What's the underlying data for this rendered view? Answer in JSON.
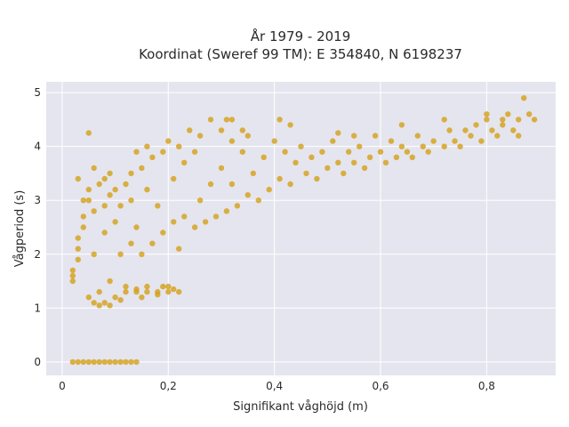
{
  "chart_data": {
    "type": "scatter",
    "title_lines": [
      "År 1979 - 2019",
      "Koordinat (Sweref 99 TM): E 354840, N 6198237"
    ],
    "xlabel": "Signifikant våghöjd (m)",
    "ylabel": "Vågperiod (s)",
    "xlim": [
      -0.03,
      0.93
    ],
    "ylim": [
      -0.25,
      5.2
    ],
    "xticks": [
      0,
      0.2,
      0.4,
      0.6,
      0.8
    ],
    "xtick_labels": [
      "0",
      "0,2",
      "0,4",
      "0,6",
      "0,8"
    ],
    "yticks": [
      0,
      1,
      2,
      3,
      4,
      5
    ],
    "ytick_labels": [
      "0",
      "1",
      "2",
      "3",
      "4",
      "5"
    ],
    "grid": true,
    "colors": {
      "marker": "#D4A017",
      "plot_bg": "#E5E5EF",
      "grid": "#ffffff"
    },
    "points": [
      [
        0.02,
        1.5
      ],
      [
        0.02,
        1.6
      ],
      [
        0.02,
        1.7
      ],
      [
        0.03,
        1.9
      ],
      [
        0.03,
        2.1
      ],
      [
        0.03,
        2.3
      ],
      [
        0.04,
        2.5
      ],
      [
        0.04,
        2.7
      ],
      [
        0.05,
        3.0
      ],
      [
        0.05,
        3.2
      ],
      [
        0.05,
        1.2
      ],
      [
        0.06,
        1.1
      ],
      [
        0.06,
        2.0
      ],
      [
        0.06,
        2.8
      ],
      [
        0.07,
        3.3
      ],
      [
        0.07,
        1.3
      ],
      [
        0.08,
        1.1
      ],
      [
        0.08,
        2.4
      ],
      [
        0.08,
        2.9
      ],
      [
        0.09,
        3.1
      ],
      [
        0.09,
        1.5
      ],
      [
        0.1,
        2.6
      ],
      [
        0.1,
        3.2
      ],
      [
        0.1,
        1.2
      ],
      [
        0.11,
        2.0
      ],
      [
        0.11,
        2.9
      ],
      [
        0.12,
        3.3
      ],
      [
        0.12,
        1.4
      ],
      [
        0.13,
        2.2
      ],
      [
        0.13,
        3.0
      ],
      [
        0.13,
        3.5
      ],
      [
        0.14,
        1.3
      ],
      [
        0.14,
        2.5
      ],
      [
        0.15,
        3.6
      ],
      [
        0.15,
        2.0
      ],
      [
        0.16,
        1.4
      ],
      [
        0.16,
        3.2
      ],
      [
        0.17,
        3.8
      ],
      [
        0.17,
        2.2
      ],
      [
        0.18,
        1.3
      ],
      [
        0.18,
        2.9
      ],
      [
        0.19,
        3.9
      ],
      [
        0.19,
        2.4
      ],
      [
        0.2,
        4.1
      ],
      [
        0.2,
        1.4
      ],
      [
        0.21,
        2.6
      ],
      [
        0.21,
        3.4
      ],
      [
        0.22,
        4.0
      ],
      [
        0.22,
        2.1
      ],
      [
        0.23,
        3.7
      ],
      [
        0.23,
        2.7
      ],
      [
        0.24,
        4.3
      ],
      [
        0.25,
        2.5
      ],
      [
        0.25,
        3.9
      ],
      [
        0.26,
        4.2
      ],
      [
        0.26,
        3.0
      ],
      [
        0.27,
        2.6
      ],
      [
        0.28,
        4.5
      ],
      [
        0.28,
        3.3
      ],
      [
        0.29,
        2.7
      ],
      [
        0.3,
        4.3
      ],
      [
        0.3,
        3.6
      ],
      [
        0.31,
        2.8
      ],
      [
        0.32,
        4.1
      ],
      [
        0.32,
        3.3
      ],
      [
        0.33,
        2.9
      ],
      [
        0.34,
        3.9
      ],
      [
        0.35,
        3.1
      ],
      [
        0.35,
        4.2
      ],
      [
        0.36,
        3.5
      ],
      [
        0.37,
        3.0
      ],
      [
        0.38,
        3.8
      ],
      [
        0.39,
        3.2
      ],
      [
        0.4,
        4.1
      ],
      [
        0.41,
        3.4
      ],
      [
        0.42,
        3.9
      ],
      [
        0.43,
        3.3
      ],
      [
        0.44,
        3.7
      ],
      [
        0.45,
        4.0
      ],
      [
        0.46,
        3.5
      ],
      [
        0.47,
        3.8
      ],
      [
        0.48,
        3.4
      ],
      [
        0.49,
        3.9
      ],
      [
        0.5,
        3.6
      ],
      [
        0.51,
        4.1
      ],
      [
        0.52,
        3.7
      ],
      [
        0.53,
        3.5
      ],
      [
        0.54,
        3.9
      ],
      [
        0.55,
        3.7
      ],
      [
        0.56,
        4.0
      ],
      [
        0.57,
        3.6
      ],
      [
        0.58,
        3.8
      ],
      [
        0.6,
        3.9
      ],
      [
        0.61,
        3.7
      ],
      [
        0.62,
        4.1
      ],
      [
        0.63,
        3.8
      ],
      [
        0.64,
        4.0
      ],
      [
        0.65,
        3.9
      ],
      [
        0.66,
        3.8
      ],
      [
        0.67,
        4.2
      ],
      [
        0.68,
        4.0
      ],
      [
        0.69,
        3.9
      ],
      [
        0.7,
        4.1
      ],
      [
        0.72,
        4.0
      ],
      [
        0.73,
        4.3
      ],
      [
        0.74,
        4.1
      ],
      [
        0.75,
        4.0
      ],
      [
        0.76,
        4.3
      ],
      [
        0.77,
        4.2
      ],
      [
        0.78,
        4.4
      ],
      [
        0.79,
        4.1
      ],
      [
        0.8,
        4.5
      ],
      [
        0.81,
        4.3
      ],
      [
        0.82,
        4.2
      ],
      [
        0.83,
        4.4
      ],
      [
        0.84,
        4.6
      ],
      [
        0.85,
        4.3
      ],
      [
        0.86,
        4.5
      ],
      [
        0.87,
        4.9
      ],
      [
        0.88,
        4.6
      ],
      [
        0.89,
        4.5
      ],
      [
        0.03,
        3.4
      ],
      [
        0.04,
        3.0
      ],
      [
        0.05,
        4.25
      ],
      [
        0.06,
        3.6
      ],
      [
        0.08,
        3.4
      ],
      [
        0.09,
        3.5
      ],
      [
        0.14,
        3.9
      ],
      [
        0.16,
        4.0
      ],
      [
        0.31,
        4.5
      ],
      [
        0.32,
        4.5
      ],
      [
        0.34,
        4.3
      ],
      [
        0.41,
        4.5
      ],
      [
        0.43,
        4.4
      ],
      [
        0.52,
        4.25
      ],
      [
        0.55,
        4.2
      ],
      [
        0.59,
        4.2
      ],
      [
        0.64,
        4.4
      ],
      [
        0.72,
        4.5
      ],
      [
        0.8,
        4.6
      ],
      [
        0.83,
        4.5
      ],
      [
        0.86,
        4.2
      ],
      [
        0.12,
        1.3
      ],
      [
        0.14,
        1.35
      ],
      [
        0.16,
        1.3
      ],
      [
        0.18,
        1.25
      ],
      [
        0.19,
        1.4
      ],
      [
        0.2,
        1.3
      ],
      [
        0.21,
        1.35
      ],
      [
        0.22,
        1.3
      ],
      [
        0.15,
        1.2
      ],
      [
        0.11,
        1.15
      ],
      [
        0.09,
        1.05
      ],
      [
        0.07,
        1.05
      ],
      [
        0.02,
        0
      ],
      [
        0.03,
        0
      ],
      [
        0.04,
        0
      ],
      [
        0.05,
        0
      ],
      [
        0.06,
        0
      ],
      [
        0.07,
        0
      ],
      [
        0.08,
        0
      ],
      [
        0.09,
        0
      ],
      [
        0.1,
        0
      ],
      [
        0.11,
        0
      ],
      [
        0.12,
        0
      ],
      [
        0.13,
        0
      ],
      [
        0.14,
        0
      ]
    ]
  }
}
